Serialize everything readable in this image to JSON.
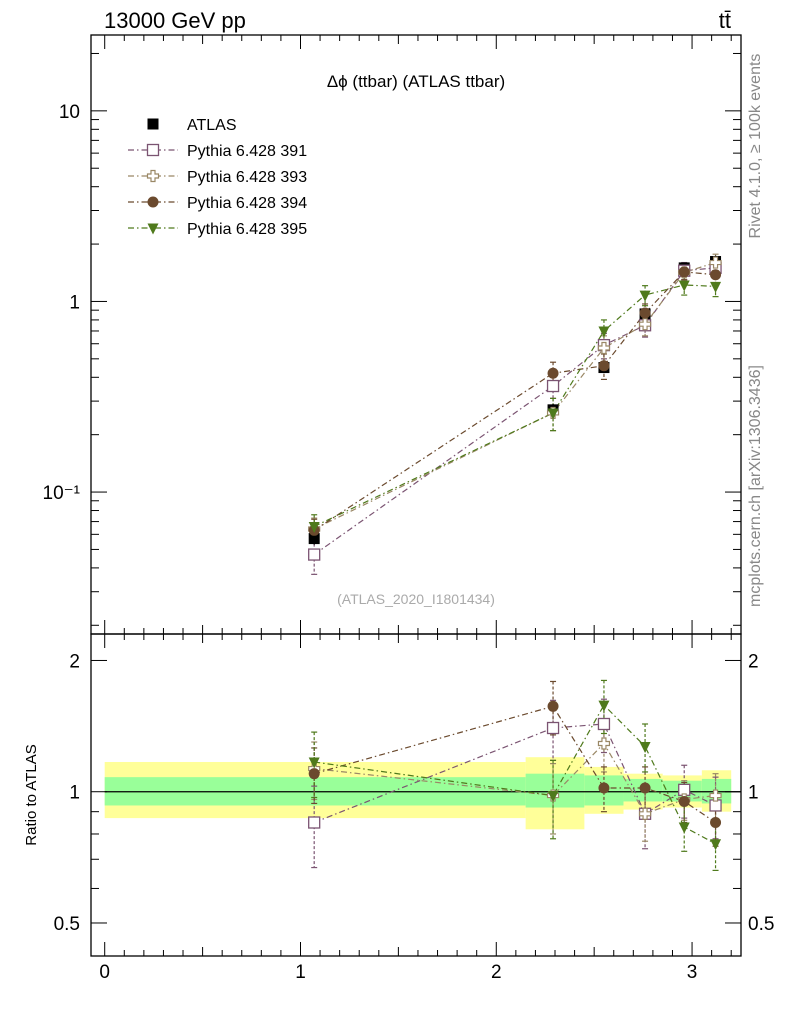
{
  "header": {
    "energy_label": "13000 GeV pp",
    "process_label": "tt̄"
  },
  "side_labels": {
    "rivet": "Rivet 4.1.0, ≥ 100k events",
    "mcplots": "mcplots.cern.ch [arXiv:1306.3436]"
  },
  "chart_data": {
    "type": "scatter",
    "title": "Δϕ (ttbar) (ATLAS ttbar)",
    "analysis_id": "(ATLAS_2020_I1801434)",
    "xlabel": "",
    "ylabel": "",
    "xlim": [
      -0.07,
      3.25
    ],
    "xticks": [
      "0",
      "1",
      "2",
      "3"
    ],
    "main": {
      "yscale": "log",
      "ylim": [
        0.018,
        25
      ],
      "yticks": [
        "10",
        "1",
        "10⁻¹"
      ]
    },
    "ratio": {
      "ylabel": "Ratio to ATLAS",
      "ylim": [
        0.42,
        2.3
      ],
      "yticks": [
        "2",
        "1",
        "0.5"
      ],
      "reference_line": 1
    },
    "x": [
      1.07,
      2.29,
      2.55,
      2.76,
      2.96,
      3.12
    ],
    "bands": [
      {
        "x0": 0.0,
        "x1": 2.15,
        "green": [
          0.93,
          1.08
        ],
        "yellow": [
          0.87,
          1.17
        ]
      },
      {
        "x0": 2.15,
        "x1": 2.45,
        "green": [
          0.92,
          1.1
        ],
        "yellow": [
          0.82,
          1.2
        ]
      },
      {
        "x0": 2.45,
        "x1": 2.65,
        "green": [
          0.93,
          1.09
        ],
        "yellow": [
          0.89,
          1.14
        ]
      },
      {
        "x0": 2.65,
        "x1": 2.85,
        "green": [
          0.95,
          1.07
        ],
        "yellow": [
          0.91,
          1.1
        ]
      },
      {
        "x0": 2.85,
        "x1": 3.05,
        "green": [
          0.95,
          1.06
        ],
        "yellow": [
          0.92,
          1.09
        ]
      },
      {
        "x0": 3.05,
        "x1": 3.2,
        "green": [
          0.94,
          1.07
        ],
        "yellow": [
          0.9,
          1.12
        ]
      }
    ],
    "data": {
      "name": "ATLAS",
      "color": "#000000",
      "values": [
        0.057,
        0.27,
        0.45,
        0.86,
        1.5,
        1.62
      ],
      "err": [
        0.004,
        0.02,
        0.03,
        0.06,
        0.1,
        0.12
      ]
    },
    "series": [
      {
        "name": "Pythia 6.428 391",
        "color": "#7b5472",
        "marker": "square-open",
        "values": [
          0.047,
          0.36,
          0.59,
          0.75,
          1.45,
          1.5
        ],
        "err": [
          0.01,
          0.05,
          0.09,
          0.1,
          0.15,
          0.15
        ],
        "ratio": [
          0.85,
          1.4,
          1.43,
          0.89,
          1.01,
          0.93
        ],
        "ratio_err": [
          0.18,
          0.22,
          0.2,
          0.15,
          0.14,
          0.15
        ]
      },
      {
        "name": "Pythia 6.428 393",
        "color": "#9a8866",
        "marker": "cross-open",
        "values": [
          0.064,
          0.26,
          0.57,
          0.76,
          1.42,
          1.6
        ],
        "err": [
          0.009,
          0.05,
          0.09,
          0.1,
          0.15,
          0.17
        ],
        "ratio": [
          1.13,
          0.98,
          1.29,
          0.89,
          0.96,
          0.98
        ],
        "ratio_err": [
          0.17,
          0.18,
          0.18,
          0.12,
          0.1,
          0.12
        ]
      },
      {
        "name": "Pythia 6.428 394",
        "color": "#6b4a2e",
        "marker": "circle",
        "values": [
          0.063,
          0.42,
          0.46,
          0.87,
          1.43,
          1.38
        ],
        "err": [
          0.009,
          0.06,
          0.07,
          0.1,
          0.13,
          0.14
        ],
        "ratio": [
          1.1,
          1.57,
          1.02,
          1.02,
          0.95,
          0.85
        ],
        "ratio_err": [
          0.16,
          0.22,
          0.12,
          0.12,
          0.1,
          0.1
        ]
      },
      {
        "name": "Pythia 6.428 395",
        "color": "#4f7a1c",
        "marker": "triangle-down",
        "values": [
          0.066,
          0.26,
          0.7,
          1.08,
          1.22,
          1.2
        ],
        "err": [
          0.01,
          0.05,
          0.1,
          0.13,
          0.14,
          0.14
        ],
        "ratio": [
          1.17,
          0.98,
          1.58,
          1.27,
          0.83,
          0.76
        ],
        "ratio_err": [
          0.2,
          0.2,
          0.22,
          0.16,
          0.1,
          0.1
        ]
      }
    ]
  }
}
